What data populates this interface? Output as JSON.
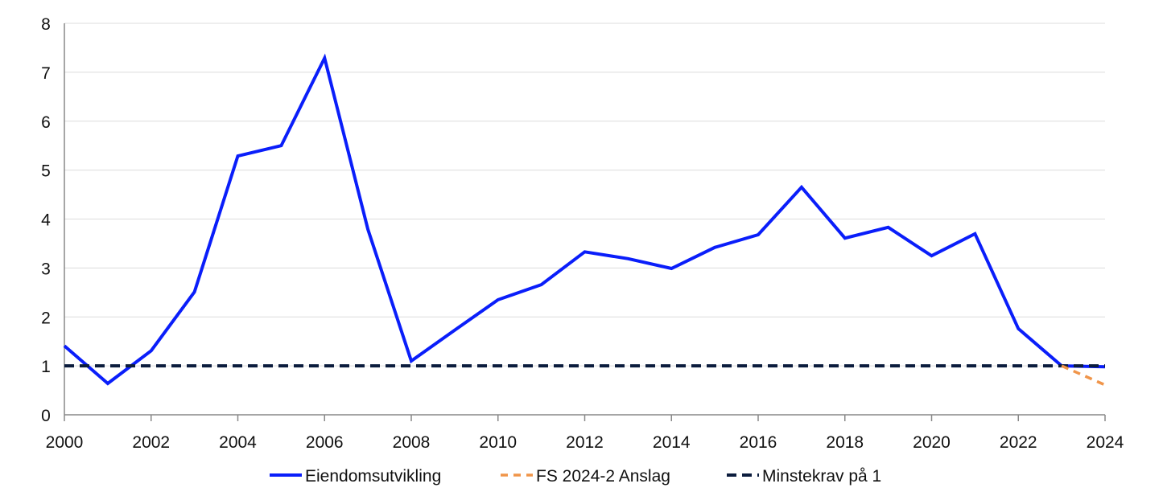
{
  "chart_data": {
    "type": "line",
    "title": "",
    "xlabel": "",
    "ylabel": "",
    "xlim": [
      2000,
      2024
    ],
    "ylim": [
      0,
      8
    ],
    "grid": true,
    "legend_position": "bottom",
    "x_ticks": [
      "2000",
      "2002",
      "2004",
      "2006",
      "2008",
      "2010",
      "2012",
      "2014",
      "2016",
      "2018",
      "2020",
      "2022",
      "2024"
    ],
    "y_ticks": [
      "0",
      "1",
      "2",
      "3",
      "4",
      "5",
      "6",
      "7",
      "8"
    ],
    "series": [
      {
        "name": "Eiendomsutvikling",
        "color": "#0a1efa",
        "style": "solid",
        "x": [
          2000,
          2001,
          2002,
          2003,
          2004,
          2005,
          2006,
          2007,
          2008,
          2009,
          2010,
          2011,
          2012,
          2013,
          2014,
          2015,
          2016,
          2017,
          2018,
          2019,
          2020,
          2021,
          2022,
          2023,
          2024
        ],
        "values": [
          1.41,
          0.64,
          1.31,
          2.51,
          5.29,
          5.5,
          7.29,
          3.79,
          1.1,
          1.73,
          2.35,
          2.66,
          3.33,
          3.19,
          2.99,
          3.42,
          3.68,
          4.65,
          3.61,
          3.83,
          3.25,
          3.7,
          1.76,
          1.0,
          0.98
        ]
      },
      {
        "name": "FS 2024-2 Anslag",
        "color": "#f0954a",
        "style": "dashed",
        "x": [
          2023,
          2024
        ],
        "values": [
          1.0,
          0.61
        ]
      },
      {
        "name": "Minstekrav på 1",
        "color": "#0b1c3d",
        "style": "dashed",
        "x": [
          2000,
          2024
        ],
        "values": [
          1,
          1
        ]
      }
    ]
  }
}
